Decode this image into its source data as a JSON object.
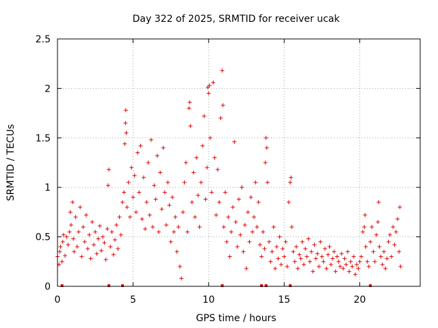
{
  "chart_data": {
    "type": "scatter",
    "title": "Day 322 of 2025, SRMTID for receiver ucak",
    "xlabel": "GPS time / hours",
    "ylabel": "SRMTID / TECUs",
    "xlim": [
      0,
      24
    ],
    "ylim": [
      0,
      2.5
    ],
    "xticks": [
      0,
      5,
      10,
      15,
      20
    ],
    "yticks": [
      0,
      0.5,
      1,
      1.5,
      2,
      2.5
    ],
    "xtick_labels": [
      "0",
      "5",
      "10",
      "15",
      "20"
    ],
    "ytick_labels": [
      "0",
      "0.5",
      "1",
      "1.5",
      "2",
      "2.5"
    ],
    "grid": true,
    "marker": "+",
    "series_color": "#e00000",
    "series": [
      {
        "name": "SRMTID",
        "points": [
          [
            0.0,
            0.3
          ],
          [
            0.1,
            0.22
          ],
          [
            0.15,
            0.35
          ],
          [
            0.2,
            0.4
          ],
          [
            0.3,
            0.25
          ],
          [
            0.35,
            0.45
          ],
          [
            0.4,
            0.52
          ],
          [
            0.5,
            0.31
          ],
          [
            0.6,
            0.5
          ],
          [
            0.7,
            0.42
          ],
          [
            0.8,
            0.55
          ],
          [
            0.85,
            0.75
          ],
          [
            0.9,
            0.62
          ],
          [
            1.0,
            0.85
          ],
          [
            1.05,
            0.48
          ],
          [
            1.1,
            0.35
          ],
          [
            1.2,
            0.7
          ],
          [
            1.3,
            0.4
          ],
          [
            1.4,
            0.55
          ],
          [
            1.5,
            0.8
          ],
          [
            1.6,
            0.3
          ],
          [
            1.7,
            0.6
          ],
          [
            1.8,
            0.45
          ],
          [
            1.9,
            0.72
          ],
          [
            2.0,
            0.38
          ],
          [
            2.1,
            0.52
          ],
          [
            2.2,
            0.28
          ],
          [
            2.3,
            0.65
          ],
          [
            2.4,
            0.42
          ],
          [
            2.5,
            0.55
          ],
          [
            2.6,
            0.33
          ],
          [
            2.7,
            0.48
          ],
          [
            2.8,
            0.61
          ],
          [
            2.9,
            0.36
          ],
          [
            3.0,
            0.5
          ],
          [
            3.1,
            0.44
          ],
          [
            3.2,
            0.27
          ],
          [
            3.3,
            0.58
          ],
          [
            3.35,
            1.02
          ],
          [
            3.4,
            1.18
          ],
          [
            3.5,
            0.4
          ],
          [
            3.6,
            0.55
          ],
          [
            3.7,
            0.32
          ],
          [
            3.8,
            0.47
          ],
          [
            3.9,
            0.62
          ],
          [
            4.0,
            0.38
          ],
          [
            4.1,
            0.7
          ],
          [
            4.2,
            0.52
          ],
          [
            4.3,
            0.85
          ],
          [
            4.4,
            0.95
          ],
          [
            4.45,
            1.44
          ],
          [
            4.5,
            1.65
          ],
          [
            4.52,
            1.78
          ],
          [
            4.55,
            1.55
          ],
          [
            4.6,
            0.8
          ],
          [
            4.7,
            1.05
          ],
          [
            4.8,
            0.7
          ],
          [
            4.9,
            1.2
          ],
          [
            5.0,
            0.9
          ],
          [
            5.1,
            1.12
          ],
          [
            5.2,
            0.75
          ],
          [
            5.3,
            1.35
          ],
          [
            5.4,
            0.95
          ],
          [
            5.5,
            1.42
          ],
          [
            5.6,
            0.68
          ],
          [
            5.7,
            1.1
          ],
          [
            5.8,
            0.58
          ],
          [
            5.9,
            0.85
          ],
          [
            6.0,
            1.25
          ],
          [
            6.1,
            0.72
          ],
          [
            6.2,
            1.48
          ],
          [
            6.3,
            0.6
          ],
          [
            6.4,
            1.02
          ],
          [
            6.5,
            0.88
          ],
          [
            6.6,
            1.32
          ],
          [
            6.7,
            0.55
          ],
          [
            6.8,
            1.15
          ],
          [
            6.9,
            0.78
          ],
          [
            7.0,
            1.4
          ],
          [
            7.1,
            0.95
          ],
          [
            7.2,
            0.62
          ],
          [
            7.3,
            1.05
          ],
          [
            7.4,
            0.82
          ],
          [
            7.5,
            0.45
          ],
          [
            7.6,
            0.9
          ],
          [
            7.7,
            0.55
          ],
          [
            7.8,
            0.7
          ],
          [
            7.9,
            0.35
          ],
          [
            8.0,
            0.6
          ],
          [
            8.1,
            0.2
          ],
          [
            8.2,
            0.08
          ],
          [
            8.3,
            0.75
          ],
          [
            8.4,
            1.05
          ],
          [
            8.5,
            1.25
          ],
          [
            8.6,
            0.55
          ],
          [
            8.7,
            1.8
          ],
          [
            8.75,
            1.86
          ],
          [
            8.8,
            1.62
          ],
          [
            8.9,
            0.85
          ],
          [
            9.0,
            1.15
          ],
          [
            9.1,
            0.7
          ],
          [
            9.2,
            1.3
          ],
          [
            9.3,
            0.92
          ],
          [
            9.4,
            0.6
          ],
          [
            9.5,
            1.05
          ],
          [
            9.6,
            1.42
          ],
          [
            9.7,
            1.72
          ],
          [
            9.8,
            0.88
          ],
          [
            9.9,
            1.2
          ],
          [
            9.95,
            2.01
          ],
          [
            10.0,
            1.95
          ],
          [
            10.05,
            2.03
          ],
          [
            10.1,
            1.5
          ],
          [
            10.2,
            0.95
          ],
          [
            10.3,
            2.06
          ],
          [
            10.4,
            1.3
          ],
          [
            10.5,
            0.72
          ],
          [
            10.6,
            1.18
          ],
          [
            10.7,
            0.85
          ],
          [
            10.8,
            1.7
          ],
          [
            10.9,
            2.18
          ],
          [
            10.95,
            1.83
          ],
          [
            11.0,
            0.6
          ],
          [
            11.1,
            0.95
          ],
          [
            11.2,
            0.45
          ],
          [
            11.3,
            0.7
          ],
          [
            11.4,
            0.3
          ],
          [
            11.5,
            0.55
          ],
          [
            11.6,
            0.8
          ],
          [
            11.7,
            1.46
          ],
          [
            11.8,
            0.65
          ],
          [
            11.9,
            0.4
          ],
          [
            12.0,
            0.88
          ],
          [
            12.1,
            0.52
          ],
          [
            12.2,
            1.0
          ],
          [
            12.3,
            0.35
          ],
          [
            12.4,
            0.62
          ],
          [
            12.5,
            0.18
          ],
          [
            12.6,
            0.75
          ],
          [
            12.7,
            0.45
          ],
          [
            12.8,
            0.9
          ],
          [
            12.9,
            0.55
          ],
          [
            13.0,
            0.7
          ],
          [
            13.1,
            1.05
          ],
          [
            13.2,
            0.6
          ],
          [
            13.3,
            0.85
          ],
          [
            13.4,
            0.42
          ],
          [
            13.5,
            0.3
          ],
          [
            13.6,
            0.55
          ],
          [
            13.7,
            0.38
          ],
          [
            13.75,
            1.25
          ],
          [
            13.8,
            1.5
          ],
          [
            13.85,
            1.4
          ],
          [
            13.9,
            1.05
          ],
          [
            14.0,
            0.45
          ],
          [
            14.1,
            0.25
          ],
          [
            14.2,
            0.35
          ],
          [
            14.3,
            0.6
          ],
          [
            14.4,
            0.18
          ],
          [
            14.5,
            0.4
          ],
          [
            14.6,
            0.28
          ],
          [
            14.7,
            0.5
          ],
          [
            14.8,
            0.22
          ],
          [
            14.9,
            0.38
          ],
          [
            15.0,
            0.3
          ],
          [
            15.1,
            0.45
          ],
          [
            15.2,
            0.2
          ],
          [
            15.3,
            0.85
          ],
          [
            15.4,
            1.05
          ],
          [
            15.45,
            1.1
          ],
          [
            15.5,
            0.6
          ],
          [
            15.6,
            0.35
          ],
          [
            15.7,
            0.25
          ],
          [
            15.8,
            0.4
          ],
          [
            15.9,
            0.18
          ],
          [
            16.0,
            0.32
          ],
          [
            16.1,
            0.28
          ],
          [
            16.2,
            0.45
          ],
          [
            16.3,
            0.22
          ],
          [
            16.4,
            0.38
          ],
          [
            16.5,
            0.3
          ],
          [
            16.6,
            0.48
          ],
          [
            16.7,
            0.25
          ],
          [
            16.8,
            0.35
          ],
          [
            16.9,
            0.15
          ],
          [
            17.0,
            0.42
          ],
          [
            17.1,
            0.28
          ],
          [
            17.2,
            0.33
          ],
          [
            17.3,
            0.2
          ],
          [
            17.4,
            0.45
          ],
          [
            17.5,
            0.3
          ],
          [
            17.6,
            0.25
          ],
          [
            17.7,
            0.38
          ],
          [
            17.8,
            0.18
          ],
          [
            17.9,
            0.32
          ],
          [
            18.0,
            0.4
          ],
          [
            18.1,
            0.22
          ],
          [
            18.2,
            0.28
          ],
          [
            18.3,
            0.35
          ],
          [
            18.4,
            0.15
          ],
          [
            18.5,
            0.3
          ],
          [
            18.6,
            0.25
          ],
          [
            18.7,
            0.2
          ],
          [
            18.8,
            0.33
          ],
          [
            18.9,
            0.18
          ],
          [
            19.0,
            0.28
          ],
          [
            19.1,
            0.22
          ],
          [
            19.2,
            0.35
          ],
          [
            19.3,
            0.15
          ],
          [
            19.4,
            0.25
          ],
          [
            19.5,
            0.2
          ],
          [
            19.6,
            0.3
          ],
          [
            19.7,
            0.12
          ],
          [
            19.8,
            0.22
          ],
          [
            19.9,
            0.18
          ],
          [
            20.0,
            0.25
          ],
          [
            20.1,
            0.3
          ],
          [
            20.2,
            0.55
          ],
          [
            20.3,
            0.6
          ],
          [
            20.35,
            0.72
          ],
          [
            20.4,
            0.4
          ],
          [
            20.5,
            0.25
          ],
          [
            20.6,
            0.2
          ],
          [
            20.7,
            0.45
          ],
          [
            20.8,
            0.6
          ],
          [
            20.9,
            0.35
          ],
          [
            21.0,
            0.25
          ],
          [
            21.1,
            0.52
          ],
          [
            21.2,
            0.65
          ],
          [
            21.25,
            0.85
          ],
          [
            21.3,
            0.4
          ],
          [
            21.4,
            0.3
          ],
          [
            21.5,
            0.22
          ],
          [
            21.6,
            0.35
          ],
          [
            21.7,
            0.18
          ],
          [
            21.8,
            0.28
          ],
          [
            21.9,
            0.45
          ],
          [
            22.0,
            0.52
          ],
          [
            22.1,
            0.3
          ],
          [
            22.2,
            0.6
          ],
          [
            22.3,
            0.42
          ],
          [
            22.4,
            0.55
          ],
          [
            22.5,
            0.68
          ],
          [
            22.6,
            0.35
          ],
          [
            22.65,
            0.8
          ],
          [
            22.7,
            0.2
          ]
        ]
      }
    ],
    "baseline_markers_x": [
      0.3,
      3.4,
      4.3,
      10.9,
      13.5,
      13.8,
      15.4,
      20.7
    ]
  }
}
